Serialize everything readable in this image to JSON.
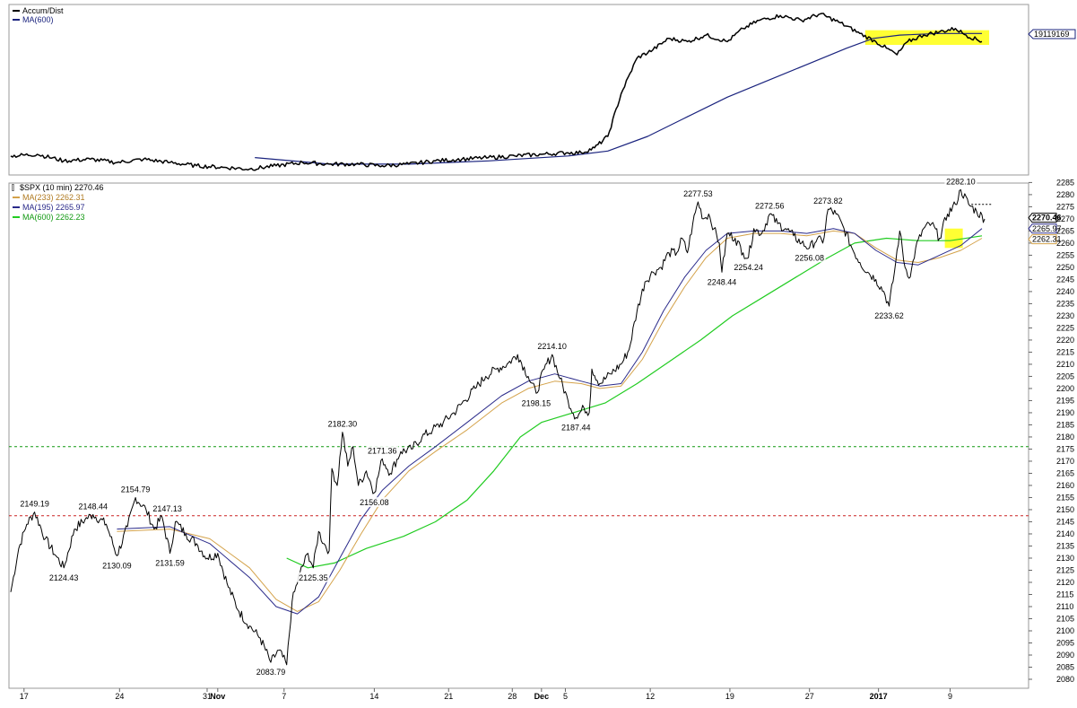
{
  "upper_panel": {
    "legend": [
      {
        "label": "Accum/Dist",
        "color": "#000000"
      },
      {
        "label": "MA(600)",
        "color": "#1a237e"
      }
    ],
    "axis_label": "19119169"
  },
  "lower_panel": {
    "legend": [
      {
        "label": "$SPX (10 min) 2270.46",
        "color": "#000000"
      },
      {
        "label": "MA(233) 2262.31",
        "color": "#d4a24a"
      },
      {
        "label": "MA(195) 2265.97",
        "color": "#2a2a8a"
      },
      {
        "label": "MA(600) 2262.23",
        "color": "#22cc22"
      }
    ],
    "price_tags": [
      {
        "text": "2270.46",
        "color": "#000000"
      },
      {
        "text": "2265.97",
        "color": "#2a2a8a"
      },
      {
        "text": "2262.31",
        "color": "#d4a24a"
      }
    ]
  },
  "chart_data": {
    "type": "line",
    "x_ticks": [
      "17",
      "24",
      "31",
      "Nov",
      "7",
      "14",
      "21",
      "28",
      "Dec",
      "5",
      "12",
      "19",
      "27",
      "2017",
      "9"
    ],
    "ylim": [
      2080,
      2287
    ],
    "y_ticks": [
      2080,
      2085,
      2090,
      2095,
      2100,
      2105,
      2110,
      2115,
      2120,
      2125,
      2130,
      2135,
      2140,
      2145,
      2150,
      2155,
      2160,
      2165,
      2170,
      2175,
      2180,
      2185,
      2190,
      2195,
      2200,
      2205,
      2210,
      2215,
      2220,
      2225,
      2230,
      2235,
      2240,
      2245,
      2250,
      2255,
      2260,
      2265,
      2270,
      2275,
      2280,
      2285
    ],
    "horizontal_lines": [
      {
        "value": 2176,
        "color": "#119911"
      },
      {
        "value": 2147.5,
        "color": "#cc2222"
      }
    ],
    "price_series": [
      {
        "t": 0,
        "v": 2116
      },
      {
        "t": 3,
        "v": 2134
      },
      {
        "t": 6,
        "v": 2144
      },
      {
        "t": 9,
        "v": 2149
      },
      {
        "t": 13,
        "v": 2138
      },
      {
        "t": 17,
        "v": 2131
      },
      {
        "t": 20,
        "v": 2126
      },
      {
        "t": 24,
        "v": 2142
      },
      {
        "t": 28,
        "v": 2146
      },
      {
        "t": 31,
        "v": 2148
      },
      {
        "t": 36,
        "v": 2144
      },
      {
        "t": 40,
        "v": 2131
      },
      {
        "t": 44,
        "v": 2143
      },
      {
        "t": 47,
        "v": 2155
      },
      {
        "t": 51,
        "v": 2150
      },
      {
        "t": 54,
        "v": 2142
      },
      {
        "t": 57,
        "v": 2147
      },
      {
        "t": 60,
        "v": 2132
      },
      {
        "t": 62,
        "v": 2145
      },
      {
        "t": 66,
        "v": 2140
      },
      {
        "t": 70,
        "v": 2136
      },
      {
        "t": 74,
        "v": 2130
      },
      {
        "t": 78,
        "v": 2132
      },
      {
        "t": 82,
        "v": 2118
      },
      {
        "t": 86,
        "v": 2108
      },
      {
        "t": 90,
        "v": 2102
      },
      {
        "t": 94,
        "v": 2097
      },
      {
        "t": 98,
        "v": 2087
      },
      {
        "t": 101,
        "v": 2092
      },
      {
        "t": 104,
        "v": 2086
      },
      {
        "t": 106,
        "v": 2112
      },
      {
        "t": 109,
        "v": 2124
      },
      {
        "t": 112,
        "v": 2132
      },
      {
        "t": 114,
        "v": 2126
      },
      {
        "t": 116,
        "v": 2141
      },
      {
        "t": 118,
        "v": 2136
      },
      {
        "t": 120,
        "v": 2133
      },
      {
        "t": 121,
        "v": 2167
      },
      {
        "t": 123,
        "v": 2160
      },
      {
        "t": 125,
        "v": 2182
      },
      {
        "t": 127,
        "v": 2168
      },
      {
        "t": 129,
        "v": 2176
      },
      {
        "t": 131,
        "v": 2160
      },
      {
        "t": 134,
        "v": 2166
      },
      {
        "t": 137,
        "v": 2157
      },
      {
        "t": 140,
        "v": 2171
      },
      {
        "t": 143,
        "v": 2165
      },
      {
        "t": 147,
        "v": 2174
      },
      {
        "t": 151,
        "v": 2175
      },
      {
        "t": 155,
        "v": 2180
      },
      {
        "t": 159,
        "v": 2183
      },
      {
        "t": 163,
        "v": 2186
      },
      {
        "t": 167,
        "v": 2190
      },
      {
        "t": 171,
        "v": 2195
      },
      {
        "t": 175,
        "v": 2200
      },
      {
        "t": 179,
        "v": 2205
      },
      {
        "t": 183,
        "v": 2208
      },
      {
        "t": 187,
        "v": 2210
      },
      {
        "t": 191,
        "v": 2214
      },
      {
        "t": 195,
        "v": 2205
      },
      {
        "t": 198,
        "v": 2198
      },
      {
        "t": 201,
        "v": 2208
      },
      {
        "t": 204,
        "v": 2214
      },
      {
        "t": 207,
        "v": 2204
      },
      {
        "t": 210,
        "v": 2195
      },
      {
        "t": 213,
        "v": 2188
      },
      {
        "t": 216,
        "v": 2192
      },
      {
        "t": 218,
        "v": 2190
      },
      {
        "t": 219,
        "v": 2208
      },
      {
        "t": 222,
        "v": 2202
      },
      {
        "t": 226,
        "v": 2206
      },
      {
        "t": 230,
        "v": 2210
      },
      {
        "t": 233,
        "v": 2216
      },
      {
        "t": 236,
        "v": 2232
      },
      {
        "t": 239,
        "v": 2244
      },
      {
        "t": 242,
        "v": 2248
      },
      {
        "t": 245,
        "v": 2250
      },
      {
        "t": 248,
        "v": 2256
      },
      {
        "t": 251,
        "v": 2256
      },
      {
        "t": 253,
        "v": 2262
      },
      {
        "t": 255,
        "v": 2256
      },
      {
        "t": 257,
        "v": 2268
      },
      {
        "t": 259,
        "v": 2277
      },
      {
        "t": 261,
        "v": 2270
      },
      {
        "t": 263,
        "v": 2272
      },
      {
        "t": 265,
        "v": 2266
      },
      {
        "t": 267,
        "v": 2260
      },
      {
        "t": 268,
        "v": 2248
      },
      {
        "t": 270,
        "v": 2264
      },
      {
        "t": 273,
        "v": 2262
      },
      {
        "t": 276,
        "v": 2256
      },
      {
        "t": 278,
        "v": 2254
      },
      {
        "t": 280,
        "v": 2266
      },
      {
        "t": 283,
        "v": 2264
      },
      {
        "t": 286,
        "v": 2272
      },
      {
        "t": 289,
        "v": 2268
      },
      {
        "t": 292,
        "v": 2266
      },
      {
        "t": 295,
        "v": 2263
      },
      {
        "t": 298,
        "v": 2260
      },
      {
        "t": 301,
        "v": 2258
      },
      {
        "t": 304,
        "v": 2262
      },
      {
        "t": 306,
        "v": 2260
      },
      {
        "t": 308,
        "v": 2274
      },
      {
        "t": 311,
        "v": 2272
      },
      {
        "t": 314,
        "v": 2266
      },
      {
        "t": 317,
        "v": 2258
      },
      {
        "t": 320,
        "v": 2252
      },
      {
        "t": 323,
        "v": 2248
      },
      {
        "t": 326,
        "v": 2245
      },
      {
        "t": 329,
        "v": 2240
      },
      {
        "t": 331,
        "v": 2234
      },
      {
        "t": 333,
        "v": 2248
      },
      {
        "t": 335,
        "v": 2265
      },
      {
        "t": 337,
        "v": 2250
      },
      {
        "t": 339,
        "v": 2246
      },
      {
        "t": 341,
        "v": 2258
      },
      {
        "t": 344,
        "v": 2266
      },
      {
        "t": 347,
        "v": 2268
      },
      {
        "t": 350,
        "v": 2262
      },
      {
        "t": 353,
        "v": 2272
      },
      {
        "t": 356,
        "v": 2276
      },
      {
        "t": 358,
        "v": 2282
      },
      {
        "t": 361,
        "v": 2276
      },
      {
        "t": 364,
        "v": 2273
      },
      {
        "t": 367,
        "v": 2270
      }
    ],
    "ma233": [
      {
        "t": 40,
        "v": 2141
      },
      {
        "t": 60,
        "v": 2142
      },
      {
        "t": 75,
        "v": 2138
      },
      {
        "t": 90,
        "v": 2126
      },
      {
        "t": 100,
        "v": 2113
      },
      {
        "t": 108,
        "v": 2108
      },
      {
        "t": 116,
        "v": 2112
      },
      {
        "t": 124,
        "v": 2125
      },
      {
        "t": 132,
        "v": 2140
      },
      {
        "t": 140,
        "v": 2154
      },
      {
        "t": 150,
        "v": 2166
      },
      {
        "t": 160,
        "v": 2174
      },
      {
        "t": 172,
        "v": 2183
      },
      {
        "t": 185,
        "v": 2194
      },
      {
        "t": 195,
        "v": 2200
      },
      {
        "t": 205,
        "v": 2203
      },
      {
        "t": 215,
        "v": 2202
      },
      {
        "t": 222,
        "v": 2200
      },
      {
        "t": 230,
        "v": 2201
      },
      {
        "t": 238,
        "v": 2212
      },
      {
        "t": 246,
        "v": 2228
      },
      {
        "t": 254,
        "v": 2242
      },
      {
        "t": 262,
        "v": 2254
      },
      {
        "t": 270,
        "v": 2262
      },
      {
        "t": 280,
        "v": 2264
      },
      {
        "t": 290,
        "v": 2264
      },
      {
        "t": 300,
        "v": 2263
      },
      {
        "t": 310,
        "v": 2265
      },
      {
        "t": 318,
        "v": 2264
      },
      {
        "t": 326,
        "v": 2258
      },
      {
        "t": 334,
        "v": 2253
      },
      {
        "t": 342,
        "v": 2252
      },
      {
        "t": 350,
        "v": 2254
      },
      {
        "t": 358,
        "v": 2257
      },
      {
        "t": 366,
        "v": 2262
      }
    ],
    "ma195": [
      {
        "t": 40,
        "v": 2142
      },
      {
        "t": 60,
        "v": 2143
      },
      {
        "t": 75,
        "v": 2136
      },
      {
        "t": 90,
        "v": 2122
      },
      {
        "t": 100,
        "v": 2110
      },
      {
        "t": 108,
        "v": 2107
      },
      {
        "t": 116,
        "v": 2114
      },
      {
        "t": 124,
        "v": 2130
      },
      {
        "t": 132,
        "v": 2146
      },
      {
        "t": 140,
        "v": 2158
      },
      {
        "t": 150,
        "v": 2168
      },
      {
        "t": 160,
        "v": 2176
      },
      {
        "t": 172,
        "v": 2186
      },
      {
        "t": 185,
        "v": 2197
      },
      {
        "t": 195,
        "v": 2203
      },
      {
        "t": 205,
        "v": 2206
      },
      {
        "t": 215,
        "v": 2203
      },
      {
        "t": 222,
        "v": 2201
      },
      {
        "t": 230,
        "v": 2202
      },
      {
        "t": 238,
        "v": 2215
      },
      {
        "t": 246,
        "v": 2232
      },
      {
        "t": 254,
        "v": 2246
      },
      {
        "t": 262,
        "v": 2257
      },
      {
        "t": 270,
        "v": 2264
      },
      {
        "t": 280,
        "v": 2265
      },
      {
        "t": 290,
        "v": 2265
      },
      {
        "t": 300,
        "v": 2264
      },
      {
        "t": 310,
        "v": 2266
      },
      {
        "t": 318,
        "v": 2264
      },
      {
        "t": 326,
        "v": 2257
      },
      {
        "t": 334,
        "v": 2252
      },
      {
        "t": 342,
        "v": 2251
      },
      {
        "t": 350,
        "v": 2255
      },
      {
        "t": 358,
        "v": 2259
      },
      {
        "t": 366,
        "v": 2266
      }
    ],
    "ma600": [
      {
        "t": 104,
        "v": 2130
      },
      {
        "t": 112,
        "v": 2126
      },
      {
        "t": 122,
        "v": 2128
      },
      {
        "t": 134,
        "v": 2134
      },
      {
        "t": 148,
        "v": 2139
      },
      {
        "t": 160,
        "v": 2145
      },
      {
        "t": 172,
        "v": 2154
      },
      {
        "t": 182,
        "v": 2166
      },
      {
        "t": 192,
        "v": 2180
      },
      {
        "t": 200,
        "v": 2186
      },
      {
        "t": 212,
        "v": 2190
      },
      {
        "t": 224,
        "v": 2194
      },
      {
        "t": 236,
        "v": 2202
      },
      {
        "t": 248,
        "v": 2211
      },
      {
        "t": 260,
        "v": 2220
      },
      {
        "t": 272,
        "v": 2230
      },
      {
        "t": 284,
        "v": 2238
      },
      {
        "t": 296,
        "v": 2246
      },
      {
        "t": 308,
        "v": 2254
      },
      {
        "t": 318,
        "v": 2260
      },
      {
        "t": 330,
        "v": 2262
      },
      {
        "t": 342,
        "v": 2261
      },
      {
        "t": 354,
        "v": 2261
      },
      {
        "t": 366,
        "v": 2263
      }
    ],
    "annotations": [
      {
        "text": "2149.19",
        "t": 9,
        "v": 2149
      },
      {
        "text": "2124.43",
        "t": 20,
        "v": 2126
      },
      {
        "text": "2148.44",
        "t": 31,
        "v": 2148
      },
      {
        "text": "2154.79",
        "t": 47,
        "v": 2155
      },
      {
        "text": "2147.13",
        "t": 59,
        "v": 2147
      },
      {
        "text": "2130.09",
        "t": 40,
        "v": 2131
      },
      {
        "text": "2131.59",
        "t": 60,
        "v": 2132
      },
      {
        "text": "2083.79",
        "t": 98,
        "v": 2087
      },
      {
        "text": "2125.35",
        "t": 114,
        "v": 2126
      },
      {
        "text": "2182.30",
        "t": 125,
        "v": 2182
      },
      {
        "text": "2171.36",
        "t": 140,
        "v": 2171
      },
      {
        "text": "2156.08",
        "t": 137,
        "v": 2157
      },
      {
        "text": "2214.10",
        "t": 204,
        "v": 2214
      },
      {
        "text": "2198.15",
        "t": 198,
        "v": 2198
      },
      {
        "text": "2187.44",
        "t": 213,
        "v": 2188
      },
      {
        "text": "2277.53",
        "t": 259,
        "v": 2277
      },
      {
        "text": "2248.44",
        "t": 268,
        "v": 2248
      },
      {
        "text": "2272.56",
        "t": 286,
        "v": 2272
      },
      {
        "text": "2254.24",
        "t": 278,
        "v": 2254
      },
      {
        "text": "2273.82",
        "t": 308,
        "v": 2274
      },
      {
        "text": "2256.08",
        "t": 301,
        "v": 2258
      },
      {
        "text": "2233.62",
        "t": 331,
        "v": 2234
      },
      {
        "text": "2282.10",
        "t": 358,
        "v": 2282
      }
    ],
    "accum_dist": [
      {
        "t": 0,
        "v": 0.1
      },
      {
        "t": 10,
        "v": 0.11
      },
      {
        "t": 20,
        "v": 0.07
      },
      {
        "t": 30,
        "v": 0.08
      },
      {
        "t": 40,
        "v": 0.06
      },
      {
        "t": 50,
        "v": 0.08
      },
      {
        "t": 60,
        "v": 0.06
      },
      {
        "t": 70,
        "v": 0.04
      },
      {
        "t": 80,
        "v": 0.03
      },
      {
        "t": 90,
        "v": 0.02
      },
      {
        "t": 100,
        "v": 0.04
      },
      {
        "t": 110,
        "v": 0.06
      },
      {
        "t": 120,
        "v": 0.05
      },
      {
        "t": 130,
        "v": 0.05
      },
      {
        "t": 140,
        "v": 0.04
      },
      {
        "t": 150,
        "v": 0.05
      },
      {
        "t": 160,
        "v": 0.07
      },
      {
        "t": 170,
        "v": 0.08
      },
      {
        "t": 180,
        "v": 0.09
      },
      {
        "t": 190,
        "v": 0.1
      },
      {
        "t": 200,
        "v": 0.11
      },
      {
        "t": 210,
        "v": 0.12
      },
      {
        "t": 215,
        "v": 0.12
      },
      {
        "t": 220,
        "v": 0.15
      },
      {
        "t": 225,
        "v": 0.22
      },
      {
        "t": 230,
        "v": 0.48
      },
      {
        "t": 236,
        "v": 0.7
      },
      {
        "t": 242,
        "v": 0.75
      },
      {
        "t": 248,
        "v": 0.82
      },
      {
        "t": 255,
        "v": 0.8
      },
      {
        "t": 262,
        "v": 0.84
      },
      {
        "t": 270,
        "v": 0.8
      },
      {
        "t": 276,
        "v": 0.88
      },
      {
        "t": 282,
        "v": 0.93
      },
      {
        "t": 290,
        "v": 0.96
      },
      {
        "t": 298,
        "v": 0.93
      },
      {
        "t": 305,
        "v": 0.97
      },
      {
        "t": 312,
        "v": 0.92
      },
      {
        "t": 320,
        "v": 0.85
      },
      {
        "t": 326,
        "v": 0.8
      },
      {
        "t": 330,
        "v": 0.76
      },
      {
        "t": 334,
        "v": 0.72
      },
      {
        "t": 338,
        "v": 0.8
      },
      {
        "t": 344,
        "v": 0.84
      },
      {
        "t": 350,
        "v": 0.86
      },
      {
        "t": 356,
        "v": 0.88
      },
      {
        "t": 360,
        "v": 0.84
      },
      {
        "t": 366,
        "v": 0.8
      }
    ],
    "accum_ma": [
      {
        "t": 92,
        "v": 0.09
      },
      {
        "t": 120,
        "v": 0.05
      },
      {
        "t": 150,
        "v": 0.05
      },
      {
        "t": 180,
        "v": 0.07
      },
      {
        "t": 210,
        "v": 0.1
      },
      {
        "t": 225,
        "v": 0.13
      },
      {
        "t": 240,
        "v": 0.22
      },
      {
        "t": 255,
        "v": 0.34
      },
      {
        "t": 270,
        "v": 0.46
      },
      {
        "t": 285,
        "v": 0.56
      },
      {
        "t": 300,
        "v": 0.66
      },
      {
        "t": 315,
        "v": 0.76
      },
      {
        "t": 325,
        "v": 0.82
      },
      {
        "t": 335,
        "v": 0.84
      },
      {
        "t": 350,
        "v": 0.85
      },
      {
        "t": 366,
        "v": 0.85
      }
    ]
  }
}
